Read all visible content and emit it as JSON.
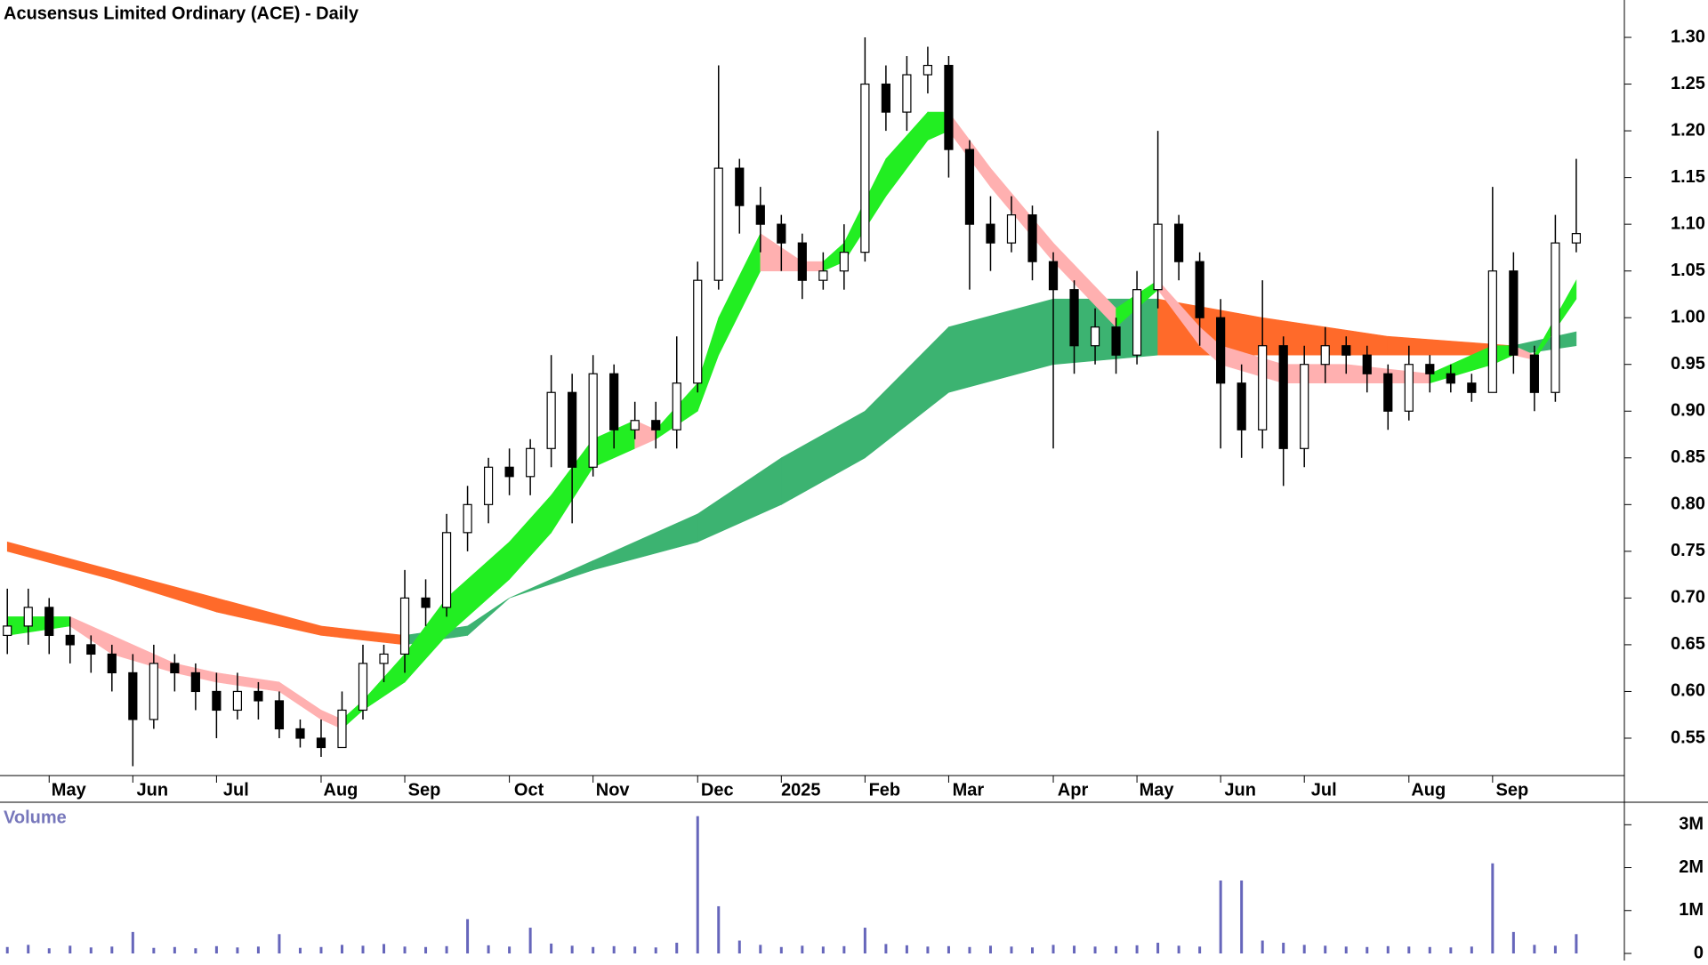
{
  "chart_data": [
    {
      "type": "candlestick",
      "title": "Acusensus Limited Ordinary (ACE) - Daily",
      "xlim": [
        -0.35,
        77.3
      ],
      "ylim": [
        0.51,
        1.34
      ],
      "yticks": [
        {
          "value": 0.55,
          "label": "0.55"
        },
        {
          "value": 0.6,
          "label": "0.60"
        },
        {
          "value": 0.65,
          "label": "0.65"
        },
        {
          "value": 0.7,
          "label": "0.70"
        },
        {
          "value": 0.75,
          "label": "0.75"
        },
        {
          "value": 0.8,
          "label": "0.80"
        },
        {
          "value": 0.85,
          "label": "0.85"
        },
        {
          "value": 0.9,
          "label": "0.90"
        },
        {
          "value": 0.95,
          "label": "0.95"
        },
        {
          "value": 1.0,
          "label": "1.00"
        },
        {
          "value": 1.05,
          "label": "1.05"
        },
        {
          "value": 1.1,
          "label": "1.10"
        },
        {
          "value": 1.15,
          "label": "1.15"
        },
        {
          "value": 1.2,
          "label": "1.20"
        },
        {
          "value": 1.25,
          "label": "1.25"
        },
        {
          "value": 1.3,
          "label": "1.30"
        }
      ],
      "xticks": [
        {
          "value": 2,
          "label": "May"
        },
        {
          "value": 6,
          "label": "Jun"
        },
        {
          "value": 10,
          "label": "Jul"
        },
        {
          "value": 15,
          "label": "Aug"
        },
        {
          "value": 19,
          "label": "Sep"
        },
        {
          "value": 24,
          "label": "Oct"
        },
        {
          "value": 28,
          "label": "Nov"
        },
        {
          "value": 33,
          "label": "Dec"
        },
        {
          "value": 37,
          "label": "2025"
        },
        {
          "value": 41,
          "label": "Feb"
        },
        {
          "value": 45,
          "label": "Mar"
        },
        {
          "value": 50,
          "label": "Apr"
        },
        {
          "value": 54,
          "label": "May"
        },
        {
          "value": 58,
          "label": "Jun"
        },
        {
          "value": 62,
          "label": "Jul"
        },
        {
          "value": 67,
          "label": "Aug"
        },
        {
          "value": 71,
          "label": "Sep"
        }
      ],
      "candles": {
        "open": [
          0.66,
          0.67,
          0.69,
          0.66,
          0.65,
          0.64,
          0.62,
          0.57,
          0.63,
          0.62,
          0.6,
          0.58,
          0.6,
          0.59,
          0.56,
          0.55,
          0.54,
          0.58,
          0.63,
          0.64,
          0.7,
          0.69,
          0.77,
          0.8,
          0.84,
          0.83,
          0.86,
          0.92,
          0.84,
          0.94,
          0.88,
          0.89,
          0.88,
          0.93,
          1.04,
          1.16,
          1.12,
          1.1,
          1.08,
          1.04,
          1.05,
          1.07,
          1.25,
          1.22,
          1.26,
          1.27,
          1.18,
          1.1,
          1.08,
          1.11,
          1.06,
          1.03,
          0.97,
          0.99,
          0.96,
          1.03,
          1.1,
          1.06,
          1.0,
          0.93,
          0.88,
          0.97,
          0.86,
          0.95,
          0.97,
          0.96,
          0.94,
          0.9,
          0.95,
          0.94,
          0.93,
          0.92,
          1.05,
          0.96,
          0.92,
          1.08
        ],
        "high": [
          0.71,
          0.71,
          0.7,
          0.68,
          0.66,
          0.65,
          0.64,
          0.65,
          0.64,
          0.63,
          0.62,
          0.62,
          0.61,
          0.6,
          0.57,
          0.57,
          0.6,
          0.65,
          0.65,
          0.73,
          0.72,
          0.79,
          0.82,
          0.85,
          0.86,
          0.87,
          0.96,
          0.94,
          0.96,
          0.95,
          0.91,
          0.91,
          0.98,
          1.06,
          1.27,
          1.17,
          1.14,
          1.11,
          1.09,
          1.07,
          1.1,
          1.3,
          1.27,
          1.28,
          1.29,
          1.28,
          1.19,
          1.13,
          1.13,
          1.12,
          1.07,
          1.04,
          1.01,
          1.0,
          1.05,
          1.2,
          1.11,
          1.07,
          1.02,
          0.95,
          1.04,
          0.98,
          0.97,
          0.99,
          0.98,
          0.97,
          0.95,
          0.97,
          0.96,
          0.95,
          0.94,
          1.14,
          1.07,
          0.97,
          1.11,
          1.17
        ],
        "low": [
          0.64,
          0.65,
          0.64,
          0.63,
          0.62,
          0.6,
          0.52,
          0.56,
          0.6,
          0.58,
          0.55,
          0.57,
          0.57,
          0.55,
          0.54,
          0.53,
          0.54,
          0.57,
          0.61,
          0.62,
          0.67,
          0.68,
          0.75,
          0.78,
          0.81,
          0.81,
          0.84,
          0.78,
          0.83,
          0.86,
          0.87,
          0.86,
          0.86,
          0.92,
          1.03,
          1.09,
          1.07,
          1.05,
          1.02,
          1.03,
          1.03,
          1.06,
          1.2,
          1.2,
          1.24,
          1.15,
          1.03,
          1.05,
          1.07,
          1.04,
          0.86,
          0.94,
          0.95,
          0.94,
          0.95,
          1.01,
          1.04,
          0.97,
          0.86,
          0.85,
          0.86,
          0.82,
          0.84,
          0.93,
          0.94,
          0.92,
          0.88,
          0.89,
          0.92,
          0.92,
          0.91,
          0.92,
          0.94,
          0.9,
          0.91,
          1.07
        ],
        "close": [
          0.67,
          0.69,
          0.66,
          0.65,
          0.64,
          0.62,
          0.57,
          0.63,
          0.62,
          0.6,
          0.58,
          0.6,
          0.59,
          0.56,
          0.55,
          0.54,
          0.58,
          0.63,
          0.64,
          0.7,
          0.69,
          0.77,
          0.8,
          0.84,
          0.83,
          0.86,
          0.92,
          0.84,
          0.94,
          0.88,
          0.89,
          0.88,
          0.93,
          1.04,
          1.16,
          1.12,
          1.1,
          1.08,
          1.04,
          1.05,
          1.07,
          1.25,
          1.22,
          1.26,
          1.27,
          1.18,
          1.1,
          1.08,
          1.11,
          1.06,
          1.03,
          0.97,
          0.99,
          0.96,
          1.03,
          1.1,
          1.06,
          1.0,
          0.93,
          0.88,
          0.97,
          0.86,
          0.95,
          0.97,
          0.96,
          0.94,
          0.9,
          0.95,
          0.94,
          0.93,
          0.92,
          1.05,
          0.96,
          0.92,
          1.08,
          1.09
        ]
      },
      "bands": [
        {
          "rise_color": "#3cb371",
          "fall_color": "#ff6a2a",
          "x": [
            0,
            5,
            10,
            15,
            19,
            22,
            24,
            28,
            33,
            37,
            41,
            45,
            50,
            55,
            60,
            66,
            72,
            75
          ],
          "upper": [
            0.76,
            0.73,
            0.7,
            0.67,
            0.66,
            0.67,
            0.7,
            0.74,
            0.79,
            0.85,
            0.9,
            0.99,
            1.02,
            1.02,
            1.0,
            0.98,
            0.97,
            0.985
          ],
          "lower": [
            0.75,
            0.72,
            0.685,
            0.66,
            0.65,
            0.66,
            0.7,
            0.73,
            0.76,
            0.8,
            0.85,
            0.92,
            0.95,
            0.96,
            0.96,
            0.96,
            0.96,
            0.97
          ]
        },
        {
          "rise_color": "#22ee22",
          "fall_color": "#ffb0b0",
          "x": [
            0,
            3,
            5,
            8,
            10,
            13,
            15,
            16,
            17,
            19,
            21,
            24,
            26,
            28,
            30,
            31,
            33,
            34,
            36,
            38,
            39,
            40,
            42,
            44,
            45,
            47,
            50,
            53,
            55,
            57,
            58,
            61,
            64,
            68,
            71,
            72,
            73,
            75
          ],
          "upper": [
            0.68,
            0.68,
            0.66,
            0.63,
            0.62,
            0.61,
            0.58,
            0.57,
            0.59,
            0.64,
            0.7,
            0.76,
            0.81,
            0.87,
            0.89,
            0.88,
            0.93,
            1.0,
            1.09,
            1.06,
            1.06,
            1.08,
            1.17,
            1.22,
            1.22,
            1.16,
            1.08,
            1.01,
            1.04,
            0.99,
            0.97,
            0.95,
            0.95,
            0.94,
            0.97,
            0.97,
            0.96,
            1.04
          ],
          "lower": [
            0.66,
            0.67,
            0.64,
            0.62,
            0.61,
            0.6,
            0.57,
            0.56,
            0.58,
            0.61,
            0.66,
            0.72,
            0.77,
            0.84,
            0.86,
            0.87,
            0.9,
            0.96,
            1.05,
            1.05,
            1.05,
            1.06,
            1.13,
            1.19,
            1.2,
            1.14,
            1.06,
            0.99,
            1.03,
            0.97,
            0.95,
            0.93,
            0.93,
            0.93,
            0.95,
            0.96,
            0.955,
            1.02
          ]
        }
      ]
    },
    {
      "type": "bar",
      "title": "Volume",
      "color": "#6666bb",
      "xlim": [
        -0.35,
        77.3
      ],
      "ylim": [
        0,
        3400000
      ],
      "yticks": [
        0,
        {
          "value": 1000000,
          "label": "1M"
        },
        {
          "value": 2000000,
          "label": "2M"
        },
        {
          "value": 3000000,
          "label": "3M"
        }
      ],
      "values": [
        150000,
        200000,
        120000,
        180000,
        140000,
        160000,
        500000,
        130000,
        150000,
        120000,
        170000,
        140000,
        160000,
        450000,
        130000,
        150000,
        200000,
        180000,
        220000,
        160000,
        150000,
        170000,
        800000,
        190000,
        160000,
        600000,
        230000,
        180000,
        150000,
        170000,
        160000,
        140000,
        250000,
        3200000,
        1100000,
        300000,
        200000,
        150000,
        180000,
        160000,
        170000,
        600000,
        220000,
        190000,
        160000,
        170000,
        150000,
        180000,
        160000,
        140000,
        200000,
        180000,
        160000,
        170000,
        190000,
        250000,
        180000,
        160000,
        1700000,
        1700000,
        300000,
        250000,
        200000,
        180000,
        160000,
        150000,
        170000,
        160000,
        150000,
        140000,
        160000,
        2100000,
        500000,
        200000,
        180000,
        450000
      ]
    }
  ]
}
